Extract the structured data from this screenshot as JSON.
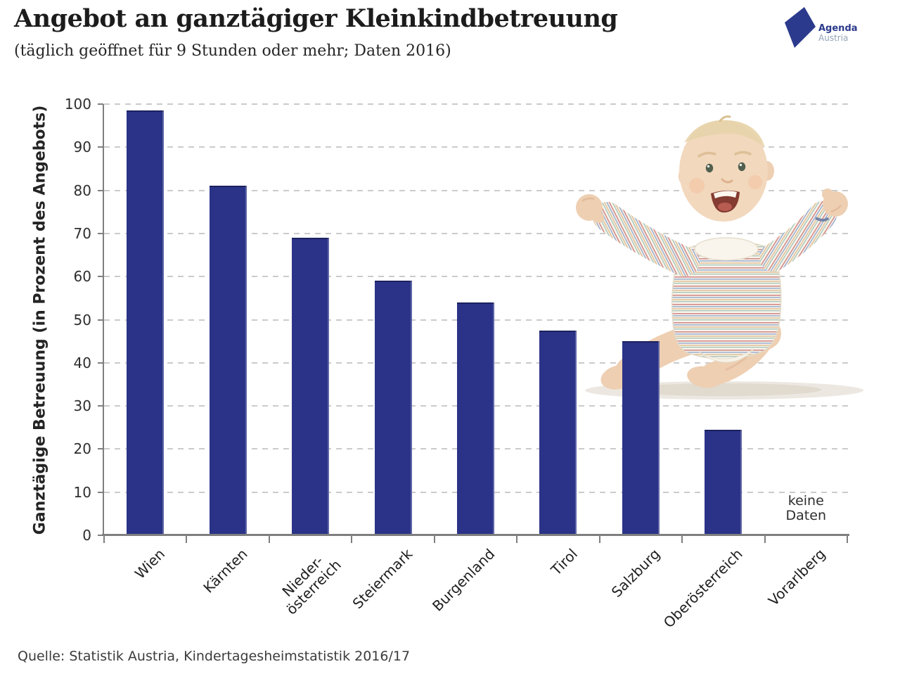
{
  "header": {
    "title": "Angebot an ganztägiger Kleinkindbetreuung",
    "subtitle": "(täglich geöffnet für 9 Stunden oder mehr; Daten 2016)"
  },
  "logo": {
    "line1": "Agenda",
    "line2": "Austria",
    "brand_color": "#2b3a8c"
  },
  "chart_data": {
    "type": "bar",
    "categories": [
      "Wien",
      "Kärnten",
      "Nieder-\nösterreich",
      "Steiermark",
      "Burgenland",
      "Tirol",
      "Salzburg",
      "Oberösterreich",
      "Vorarlberg"
    ],
    "values": [
      98.5,
      81,
      69,
      59,
      54,
      47.5,
      45,
      24.5,
      null
    ],
    "no_data_label": "keine\nDaten",
    "title": "Angebot an ganztägiger Kleinkindbetreuung",
    "xlabel": "",
    "ylabel": "Ganztägige Betreuung (in Prozent des Angebots)",
    "ylim": [
      0,
      100
    ],
    "yticks": [
      0,
      10,
      20,
      30,
      40,
      50,
      60,
      70,
      80,
      90,
      100
    ],
    "grid": true,
    "legend": "none",
    "bar_color": "#2b3388"
  },
  "footer": {
    "source": "Quelle: Statistik Austria, Kindertagesheimstatistik 2016/17"
  }
}
